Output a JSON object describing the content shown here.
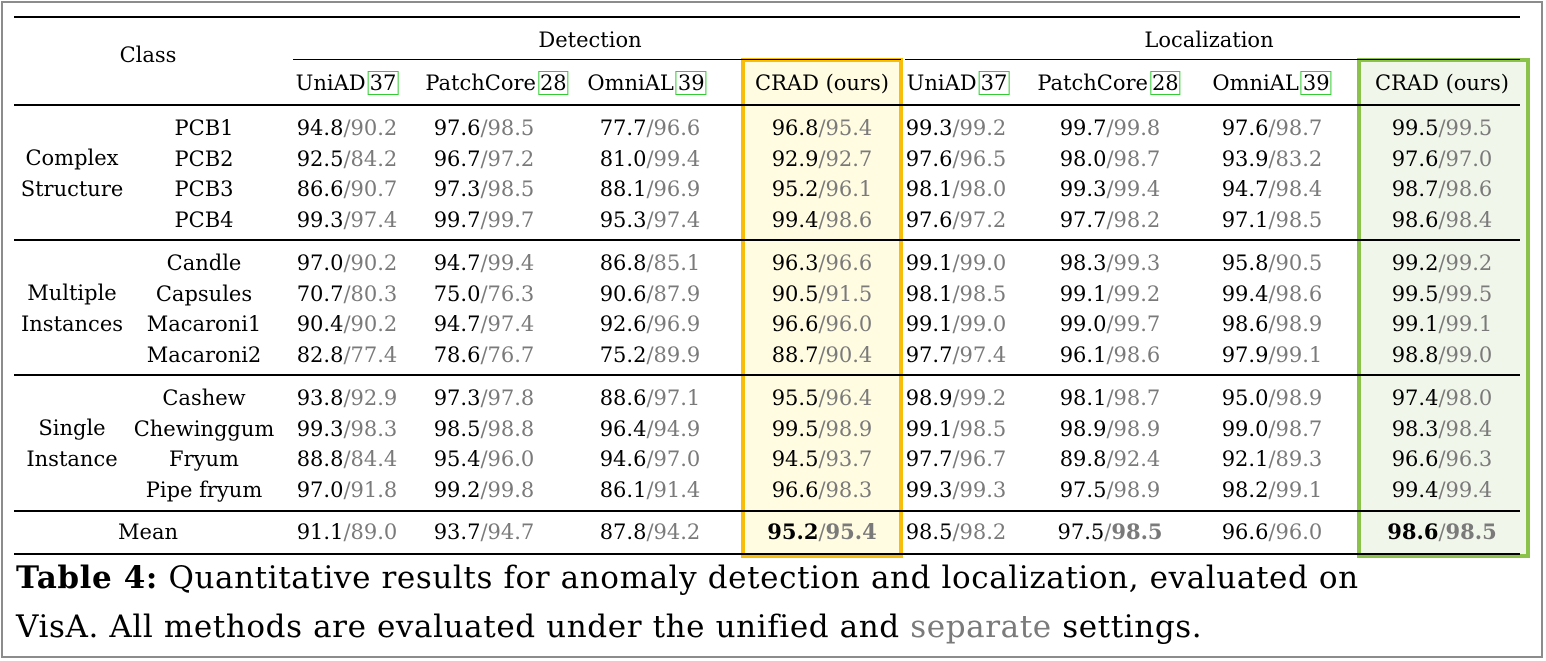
{
  "header": {
    "class_label": "Class",
    "detection_label": "Detection",
    "localization_label": "Localization",
    "methods": [
      {
        "name": "UniAD",
        "ref": "37"
      },
      {
        "name": "PatchCore",
        "ref": "28"
      },
      {
        "name": "OmniAL",
        "ref": "39"
      },
      {
        "name": "CRAD (ours)",
        "ref": ""
      }
    ]
  },
  "groups": [
    {
      "name_lines": [
        "Complex",
        "Structure"
      ],
      "rows": [
        {
          "cls": "PCB1",
          "v": [
            [
              "94.8",
              "90.2"
            ],
            [
              "97.6",
              "98.5"
            ],
            [
              "77.7",
              "96.6"
            ],
            [
              "96.8",
              "95.4"
            ],
            [
              "99.3",
              "99.2"
            ],
            [
              "99.7",
              "99.8"
            ],
            [
              "97.6",
              "98.7"
            ],
            [
              "99.5",
              "99.5"
            ]
          ]
        },
        {
          "cls": "PCB2",
          "v": [
            [
              "92.5",
              "84.2"
            ],
            [
              "96.7",
              "97.2"
            ],
            [
              "81.0",
              "99.4"
            ],
            [
              "92.9",
              "92.7"
            ],
            [
              "97.6",
              "96.5"
            ],
            [
              "98.0",
              "98.7"
            ],
            [
              "93.9",
              "83.2"
            ],
            [
              "97.6",
              "97.0"
            ]
          ]
        },
        {
          "cls": "PCB3",
          "v": [
            [
              "86.6",
              "90.7"
            ],
            [
              "97.3",
              "98.5"
            ],
            [
              "88.1",
              "96.9"
            ],
            [
              "95.2",
              "96.1"
            ],
            [
              "98.1",
              "98.0"
            ],
            [
              "99.3",
              "99.4"
            ],
            [
              "94.7",
              "98.4"
            ],
            [
              "98.7",
              "98.6"
            ]
          ]
        },
        {
          "cls": "PCB4",
          "v": [
            [
              "99.3",
              "97.4"
            ],
            [
              "99.7",
              "99.7"
            ],
            [
              "95.3",
              "97.4"
            ],
            [
              "99.4",
              "98.6"
            ],
            [
              "97.6",
              "97.2"
            ],
            [
              "97.7",
              "98.2"
            ],
            [
              "97.1",
              "98.5"
            ],
            [
              "98.6",
              "98.4"
            ]
          ]
        }
      ]
    },
    {
      "name_lines": [
        "Multiple",
        "Instances"
      ],
      "rows": [
        {
          "cls": "Candle",
          "v": [
            [
              "97.0",
              "90.2"
            ],
            [
              "94.7",
              "99.4"
            ],
            [
              "86.8",
              "85.1"
            ],
            [
              "96.3",
              "96.6"
            ],
            [
              "99.1",
              "99.0"
            ],
            [
              "98.3",
              "99.3"
            ],
            [
              "95.8",
              "90.5"
            ],
            [
              "99.2",
              "99.2"
            ]
          ]
        },
        {
          "cls": "Capsules",
          "v": [
            [
              "70.7",
              "80.3"
            ],
            [
              "75.0",
              "76.3"
            ],
            [
              "90.6",
              "87.9"
            ],
            [
              "90.5",
              "91.5"
            ],
            [
              "98.1",
              "98.5"
            ],
            [
              "99.1",
              "99.2"
            ],
            [
              "99.4",
              "98.6"
            ],
            [
              "99.5",
              "99.5"
            ]
          ]
        },
        {
          "cls": "Macaroni1",
          "v": [
            [
              "90.4",
              "90.2"
            ],
            [
              "94.7",
              "97.4"
            ],
            [
              "92.6",
              "96.9"
            ],
            [
              "96.6",
              "96.0"
            ],
            [
              "99.1",
              "99.0"
            ],
            [
              "99.0",
              "99.7"
            ],
            [
              "98.6",
              "98.9"
            ],
            [
              "99.1",
              "99.1"
            ]
          ]
        },
        {
          "cls": "Macaroni2",
          "v": [
            [
              "82.8",
              "77.4"
            ],
            [
              "78.6",
              "76.7"
            ],
            [
              "75.2",
              "89.9"
            ],
            [
              "88.7",
              "90.4"
            ],
            [
              "97.7",
              "97.4"
            ],
            [
              "96.1",
              "98.6"
            ],
            [
              "97.9",
              "99.1"
            ],
            [
              "98.8",
              "99.0"
            ]
          ]
        }
      ]
    },
    {
      "name_lines": [
        "Single",
        "Instance"
      ],
      "rows": [
        {
          "cls": "Cashew",
          "v": [
            [
              "93.8",
              "92.9"
            ],
            [
              "97.3",
              "97.8"
            ],
            [
              "88.6",
              "97.1"
            ],
            [
              "95.5",
              "96.4"
            ],
            [
              "98.9",
              "99.2"
            ],
            [
              "98.1",
              "98.7"
            ],
            [
              "95.0",
              "98.9"
            ],
            [
              "97.4",
              "98.0"
            ]
          ]
        },
        {
          "cls": "Chewinggum",
          "v": [
            [
              "99.3",
              "98.3"
            ],
            [
              "98.5",
              "98.8"
            ],
            [
              "96.4",
              "94.9"
            ],
            [
              "99.5",
              "98.9"
            ],
            [
              "99.1",
              "98.5"
            ],
            [
              "98.9",
              "98.9"
            ],
            [
              "99.0",
              "98.7"
            ],
            [
              "98.3",
              "98.4"
            ]
          ]
        },
        {
          "cls": "Fryum",
          "v": [
            [
              "88.8",
              "84.4"
            ],
            [
              "95.4",
              "96.0"
            ],
            [
              "94.6",
              "97.0"
            ],
            [
              "94.5",
              "93.7"
            ],
            [
              "97.7",
              "96.7"
            ],
            [
              "89.8",
              "92.4"
            ],
            [
              "92.1",
              "89.3"
            ],
            [
              "96.6",
              "96.3"
            ]
          ]
        },
        {
          "cls": "Pipe fryum",
          "v": [
            [
              "97.0",
              "91.8"
            ],
            [
              "99.2",
              "99.8"
            ],
            [
              "86.1",
              "91.4"
            ],
            [
              "96.6",
              "98.3"
            ],
            [
              "99.3",
              "99.3"
            ],
            [
              "97.5",
              "98.9"
            ],
            [
              "98.2",
              "99.1"
            ],
            [
              "99.4",
              "99.4"
            ]
          ]
        }
      ]
    }
  ],
  "mean": {
    "label": "Mean",
    "v": [
      [
        "91.1",
        "89.0"
      ],
      [
        "93.7",
        "94.7"
      ],
      [
        "87.8",
        "94.2"
      ],
      [
        "95.2",
        "95.4"
      ],
      [
        "98.5",
        "98.2"
      ],
      [
        "97.5",
        "98.5"
      ],
      [
        "96.6",
        "96.0"
      ],
      [
        "98.6",
        "98.5"
      ]
    ],
    "bold_first": [
      false,
      false,
      false,
      true,
      false,
      false,
      false,
      true
    ],
    "bold_second": [
      false,
      false,
      false,
      true,
      false,
      true,
      false,
      true
    ]
  },
  "caption": {
    "label": "Table 4:",
    "line1": "Quantitative results for anomaly detection and localization, evaluated on",
    "line2_a": "VisA. All methods are evaluated under the unified and",
    "line2_sep": "separate",
    "line2_b": "settings."
  },
  "colors": {
    "detection_highlight": "#f7bd0a",
    "localization_highlight": "#8bc34a",
    "citation_box": "#33cc33",
    "separate_text": "#7a7a7a"
  }
}
